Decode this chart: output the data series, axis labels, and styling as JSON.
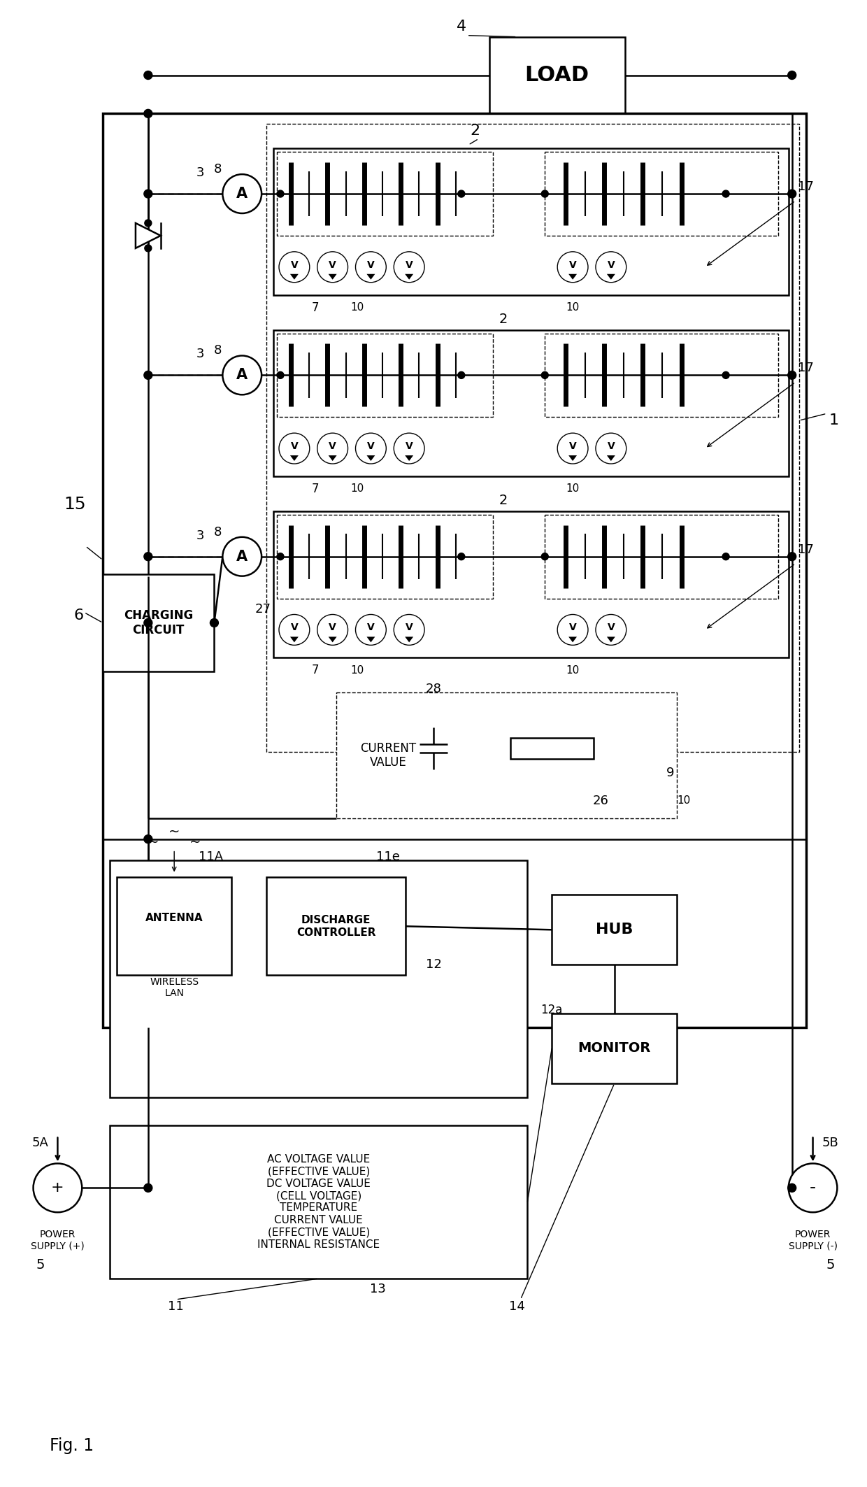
{
  "title": "Fig. 1",
  "bg_color": "#ffffff",
  "fig_width": 12.4,
  "fig_height": 21.26,
  "labels": {
    "load": "LOAD",
    "charging_circuit": "CHARGING\nCIRCUIT",
    "current_value": "CURRENT\nVALUE",
    "wireless_lan": "WIRELESS\nLAN",
    "antenna": "ANTENNA",
    "discharge_controller": "DISCHARGE\nCONTROLLER",
    "hub": "HUB",
    "monitor": "MONITOR",
    "power_supply_left": "POWER\nSUPPLY (+)",
    "power_supply_right": "POWER\nSUPPLY (-)",
    "measurement_box": "AC VOLTAGE VALUE\n(EFFECTIVE VALUE)\nDC VOLTAGE VALUE\n(CELL VOLTAGE)\nTEMPERATURE\nCURRENT VALUE\n(EFFECTIVE VALUE)\nINTERNAL RESISTANCE"
  }
}
